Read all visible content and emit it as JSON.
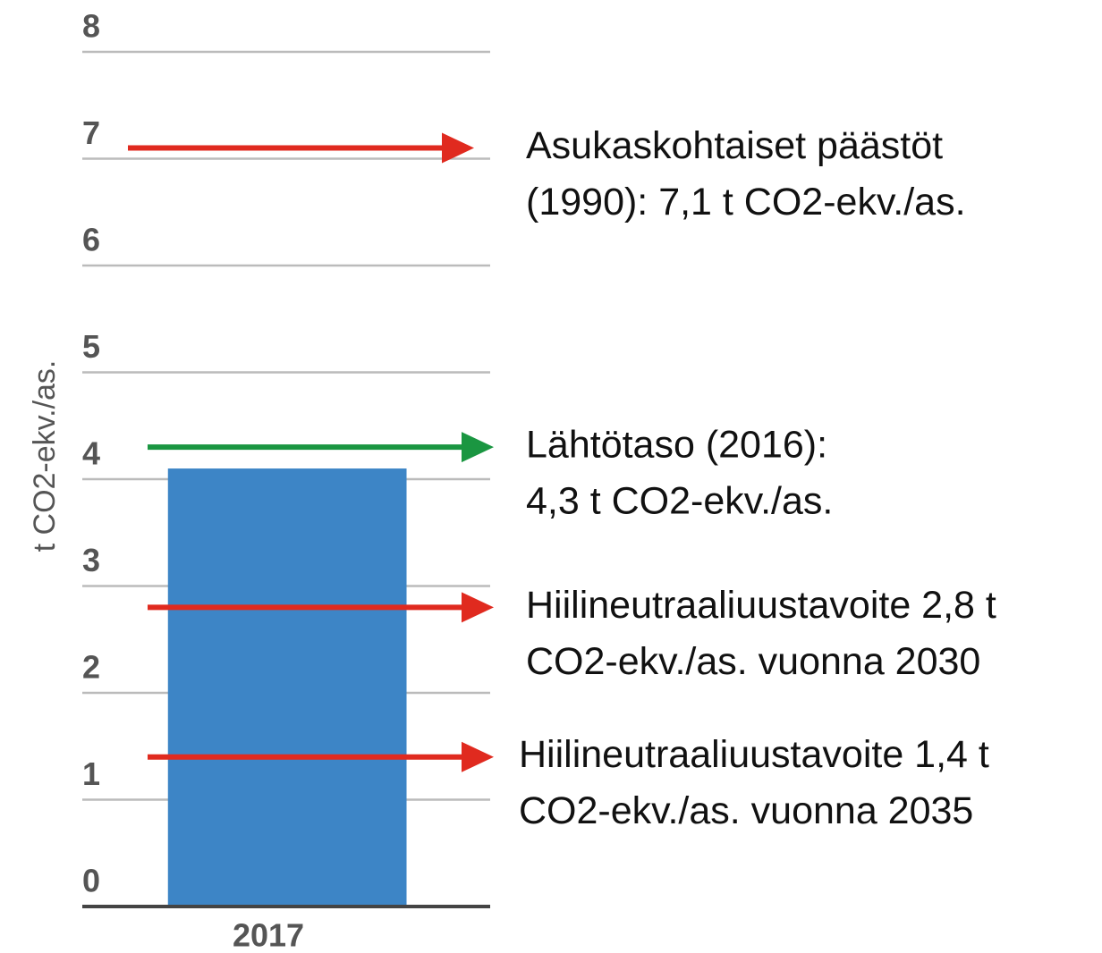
{
  "chart_data": {
    "type": "bar",
    "categories": [
      "2017"
    ],
    "values": [
      4.1
    ],
    "color": "#3d85c6",
    "ylabel": "t CO2-ekv./as.",
    "ylim": [
      0,
      8
    ],
    "yticks": [
      0,
      1,
      2,
      3,
      4,
      5,
      6,
      7,
      8
    ],
    "grid": true,
    "annotations": [
      {
        "value": 7.1,
        "color": "#e02a1f",
        "lines": [
          "Asukaskohtaiset päästöt",
          "(1990): 7,1 t CO2-ekv./as."
        ]
      },
      {
        "value": 4.3,
        "color": "#1a9641",
        "lines": [
          "Lähtötaso (2016):",
          "4,3 t CO2-ekv./as."
        ]
      },
      {
        "value": 2.8,
        "color": "#e02a1f",
        "lines": [
          "Hiilineutraaliuustavoite  2,8 t",
          "CO2-ekv./as. vuonna 2030"
        ]
      },
      {
        "value": 1.4,
        "color": "#e02a1f",
        "lines": [
          "Hiilineutraaliuustavoite 1,4 t",
          "CO2-ekv./as. vuonna 2035"
        ]
      }
    ]
  }
}
